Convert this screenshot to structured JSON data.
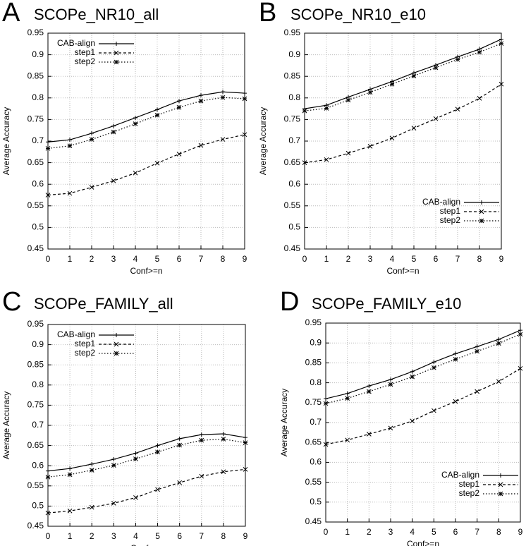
{
  "chart_data": [
    {
      "type": "line",
      "panel_label": "A",
      "title": "SCOPe_NR10_all",
      "xlabel": "Conf>=n",
      "ylabel": "Average Accuracy",
      "x": [
        0,
        1,
        2,
        3,
        4,
        5,
        6,
        7,
        8,
        9
      ],
      "xlim": [
        0,
        9
      ],
      "xticks": [
        0,
        1,
        2,
        3,
        4,
        5,
        6,
        7,
        8,
        9
      ],
      "ylim": [
        0.45,
        0.95
      ],
      "yticks": [
        0.45,
        0.5,
        0.55,
        0.6,
        0.65,
        0.7,
        0.75,
        0.8,
        0.85,
        0.9,
        0.95
      ],
      "grid": true,
      "legend": "upper left",
      "series": [
        {
          "name": "CAB-align",
          "color": "#000000",
          "dash": "solid",
          "marker": "plus",
          "values": [
            0.698,
            0.703,
            0.718,
            0.735,
            0.754,
            0.773,
            0.793,
            0.806,
            0.814,
            0.811
          ]
        },
        {
          "name": "step1",
          "color": "#000000",
          "dash": "dashed",
          "marker": "cross",
          "values": [
            0.575,
            0.579,
            0.593,
            0.608,
            0.626,
            0.649,
            0.67,
            0.69,
            0.704,
            0.715
          ]
        },
        {
          "name": "step2",
          "color": "#000000",
          "dash": "dotted",
          "marker": "star",
          "values": [
            0.683,
            0.689,
            0.704,
            0.721,
            0.74,
            0.76,
            0.778,
            0.793,
            0.801,
            0.798
          ]
        }
      ]
    },
    {
      "type": "line",
      "panel_label": "B",
      "title": "SCOPe_NR10_e10",
      "xlabel": "Conf>=n",
      "ylabel": "Average Accuracy",
      "x": [
        0,
        1,
        2,
        3,
        4,
        5,
        6,
        7,
        8,
        9
      ],
      "xlim": [
        0,
        9
      ],
      "xticks": [
        0,
        1,
        2,
        3,
        4,
        5,
        6,
        7,
        8,
        9
      ],
      "ylim": [
        0.45,
        0.95
      ],
      "yticks": [
        0.45,
        0.5,
        0.55,
        0.6,
        0.65,
        0.7,
        0.75,
        0.8,
        0.85,
        0.9,
        0.95
      ],
      "grid": true,
      "legend": "lower right",
      "series": [
        {
          "name": "CAB-align",
          "color": "#000000",
          "dash": "solid",
          "marker": "plus",
          "values": [
            0.775,
            0.783,
            0.802,
            0.82,
            0.838,
            0.858,
            0.876,
            0.895,
            0.913,
            0.936
          ]
        },
        {
          "name": "step1",
          "color": "#000000",
          "dash": "dashed",
          "marker": "cross",
          "values": [
            0.65,
            0.657,
            0.672,
            0.688,
            0.707,
            0.73,
            0.752,
            0.774,
            0.799,
            0.832
          ]
        },
        {
          "name": "step2",
          "color": "#000000",
          "dash": "dotted",
          "marker": "star",
          "values": [
            0.77,
            0.776,
            0.795,
            0.813,
            0.832,
            0.851,
            0.87,
            0.889,
            0.906,
            0.926
          ]
        }
      ]
    },
    {
      "type": "line",
      "panel_label": "C",
      "title": "SCOPe_FAMILY_all",
      "xlabel": "Conf>=n",
      "ylabel": "Average Accuracy",
      "x": [
        0,
        1,
        2,
        3,
        4,
        5,
        6,
        7,
        8,
        9
      ],
      "xlim": [
        0,
        9
      ],
      "xticks": [
        0,
        1,
        2,
        3,
        4,
        5,
        6,
        7,
        8,
        9
      ],
      "ylim": [
        0.45,
        0.95
      ],
      "yticks": [
        0.45,
        0.5,
        0.55,
        0.6,
        0.65,
        0.7,
        0.75,
        0.8,
        0.85,
        0.9,
        0.95
      ],
      "grid": true,
      "legend": "upper left",
      "series": [
        {
          "name": "CAB-align",
          "color": "#000000",
          "dash": "solid",
          "marker": "plus",
          "values": [
            0.587,
            0.593,
            0.604,
            0.616,
            0.631,
            0.65,
            0.667,
            0.677,
            0.679,
            0.67
          ]
        },
        {
          "name": "step1",
          "color": "#000000",
          "dash": "dashed",
          "marker": "cross",
          "values": [
            0.483,
            0.488,
            0.497,
            0.507,
            0.521,
            0.541,
            0.558,
            0.574,
            0.585,
            0.591
          ]
        },
        {
          "name": "step2",
          "color": "#000000",
          "dash": "dotted",
          "marker": "star",
          "values": [
            0.572,
            0.578,
            0.589,
            0.601,
            0.617,
            0.634,
            0.651,
            0.663,
            0.666,
            0.657
          ]
        }
      ]
    },
    {
      "type": "line",
      "panel_label": "D",
      "title": "SCOPe_FAMILY_e10",
      "xlabel": "Conf>=n",
      "ylabel": "Average Accuracy",
      "x": [
        0,
        1,
        2,
        3,
        4,
        5,
        6,
        7,
        8,
        9
      ],
      "xlim": [
        0,
        9
      ],
      "xticks": [
        0,
        1,
        2,
        3,
        4,
        5,
        6,
        7,
        8,
        9
      ],
      "ylim": [
        0.45,
        0.95
      ],
      "yticks": [
        0.45,
        0.5,
        0.55,
        0.6,
        0.65,
        0.7,
        0.75,
        0.8,
        0.85,
        0.9,
        0.95
      ],
      "grid": true,
      "legend": "lower right",
      "series": [
        {
          "name": "CAB-align",
          "color": "#000000",
          "dash": "solid",
          "marker": "plus",
          "values": [
            0.76,
            0.773,
            0.792,
            0.808,
            0.828,
            0.852,
            0.873,
            0.891,
            0.909,
            0.932
          ]
        },
        {
          "name": "step1",
          "color": "#000000",
          "dash": "dashed",
          "marker": "cross",
          "values": [
            0.645,
            0.656,
            0.671,
            0.686,
            0.704,
            0.73,
            0.753,
            0.778,
            0.803,
            0.836
          ]
        },
        {
          "name": "step2",
          "color": "#000000",
          "dash": "dotted",
          "marker": "star",
          "values": [
            0.748,
            0.761,
            0.778,
            0.796,
            0.815,
            0.838,
            0.859,
            0.879,
            0.899,
            0.922
          ]
        }
      ]
    }
  ]
}
